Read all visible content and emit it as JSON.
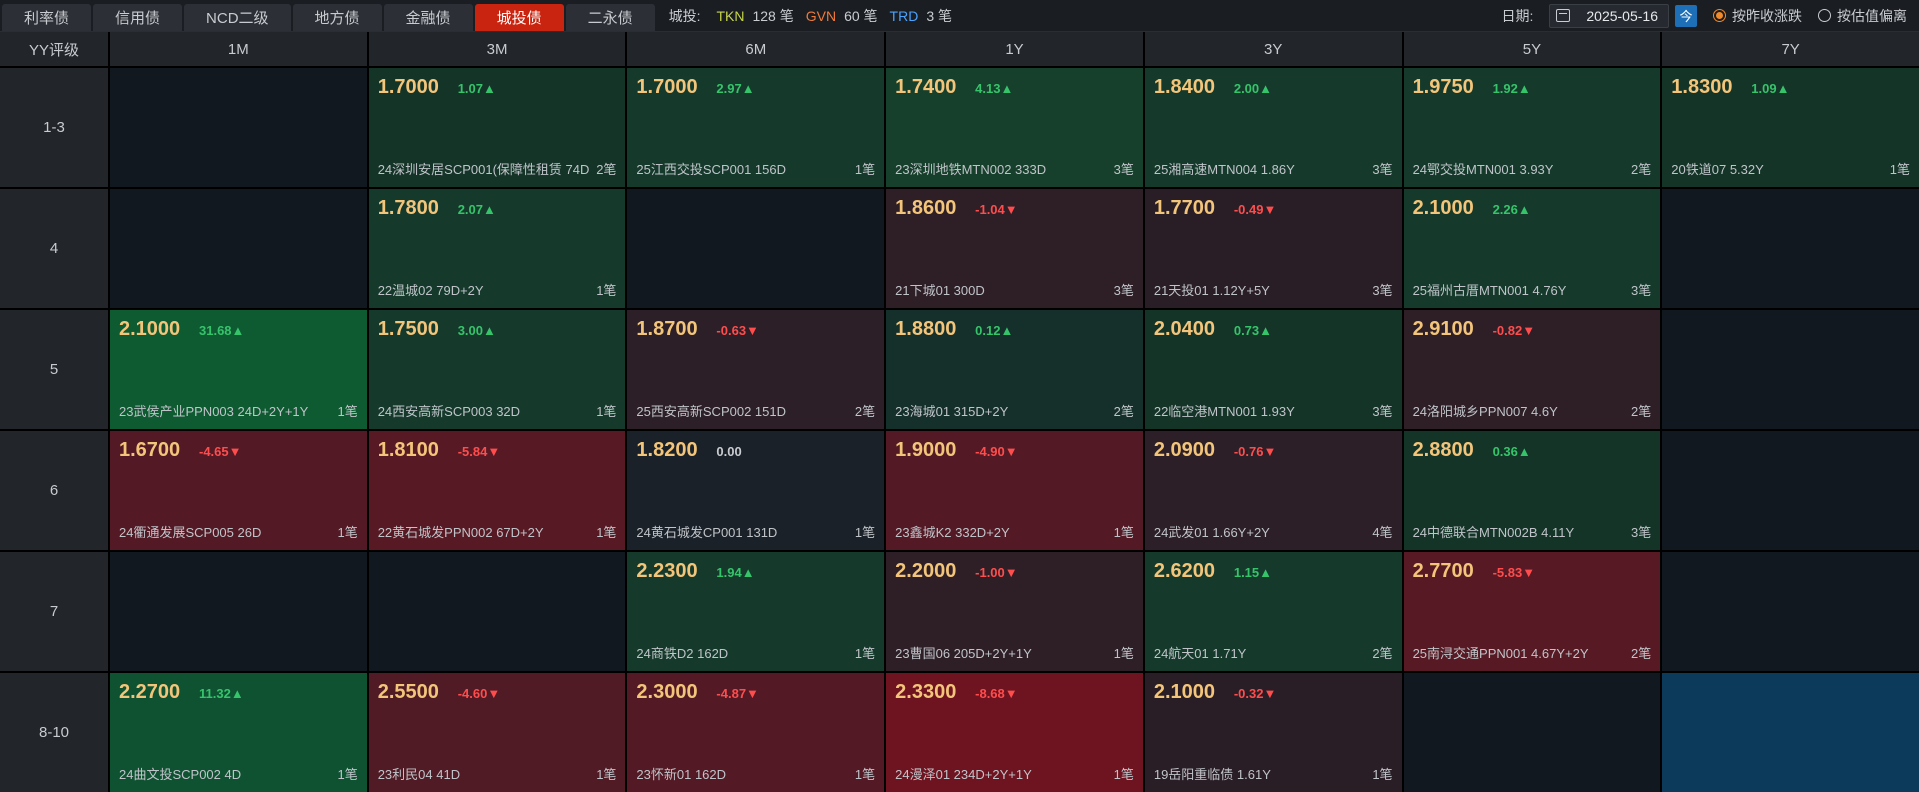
{
  "tabs": [
    {
      "label": "利率债",
      "active": false
    },
    {
      "label": "信用债",
      "active": false
    },
    {
      "label": "NCD二级",
      "active": false
    },
    {
      "label": "地方债",
      "active": false
    },
    {
      "label": "金融债",
      "active": false
    },
    {
      "label": "城投债",
      "active": true
    },
    {
      "label": "二永债",
      "active": false
    }
  ],
  "stats": {
    "label": "城投:",
    "items": [
      {
        "code": "TKN",
        "value": "128 笔",
        "color": "#c7d64a"
      },
      {
        "code": "GVN",
        "value": "60 笔",
        "color": "#f07a3a"
      },
      {
        "code": "TRD",
        "value": "3 笔",
        "color": "#4aa3ff"
      }
    ]
  },
  "date": {
    "label": "日期:",
    "value": "2025-05-16",
    "today": "今"
  },
  "radios": [
    {
      "label": "按昨收涨跌",
      "selected": true
    },
    {
      "label": "按估值偏离",
      "selected": false
    }
  ],
  "columns": [
    "YY评级",
    "1M",
    "3M",
    "6M",
    "1Y",
    "3Y",
    "5Y",
    "7Y"
  ],
  "rows": [
    {
      "rating": "1-3",
      "cells": [
        null,
        {
          "price": "1.7000",
          "change": "1.07▲",
          "dir": "up",
          "bond": "24深圳安居SCP001(保障性租赁 74D",
          "count": "2笔",
          "bg": "#153428"
        },
        {
          "price": "1.7000",
          "change": "2.97▲",
          "dir": "up",
          "bond": "25江西交投SCP001 156D",
          "count": "1笔",
          "bg": "#153a2b"
        },
        {
          "price": "1.7400",
          "change": "4.13▲",
          "dir": "up",
          "bond": "23深圳地铁MTN002 333D",
          "count": "3笔",
          "bg": "#17402c"
        },
        {
          "price": "1.8400",
          "change": "2.00▲",
          "dir": "up",
          "bond": "25湘高速MTN004 1.86Y",
          "count": "3笔",
          "bg": "#153a2b"
        },
        {
          "price": "1.9750",
          "change": "1.92▲",
          "dir": "up",
          "bond": "24鄂交投MTN001 3.93Y",
          "count": "2笔",
          "bg": "#153a2b"
        },
        {
          "price": "1.8300",
          "change": "1.09▲",
          "dir": "up",
          "bond": "20铁道07 5.32Y",
          "count": "1笔",
          "bg": "#153428"
        }
      ]
    },
    {
      "rating": "4",
      "cells": [
        null,
        {
          "price": "1.7800",
          "change": "2.07▲",
          "dir": "up",
          "bond": "22温城02 79D+2Y",
          "count": "1笔",
          "bg": "#153a2b"
        },
        null,
        {
          "price": "1.8600",
          "change": "-1.04▼",
          "dir": "dn",
          "bond": "21下城01 300D",
          "count": "3笔",
          "bg": "#2e1f27"
        },
        {
          "price": "1.7700",
          "change": "-0.49▼",
          "dir": "dn",
          "bond": "21天投01 1.12Y+5Y",
          "count": "3笔",
          "bg": "#2a1e26"
        },
        {
          "price": "2.1000",
          "change": "2.26▲",
          "dir": "up",
          "bond": "25福州古厝MTN001 4.76Y",
          "count": "3笔",
          "bg": "#153a2b"
        },
        null
      ]
    },
    {
      "rating": "5",
      "cells": [
        {
          "price": "2.1000",
          "change": "31.68▲",
          "dir": "up",
          "bond": "23武侯产业PPN003 24D+2Y+1Y",
          "count": "1笔",
          "bg": "#0e5a31"
        },
        {
          "price": "1.7500",
          "change": "3.00▲",
          "dir": "up",
          "bond": "24西安高新SCP003 32D",
          "count": "1笔",
          "bg": "#153a2b"
        },
        {
          "price": "1.8700",
          "change": "-0.63▼",
          "dir": "dn",
          "bond": "25西安高新SCP002 151D",
          "count": "2笔",
          "bg": "#2c1f27"
        },
        {
          "price": "1.8800",
          "change": "0.12▲",
          "dir": "up",
          "bond": "23海城01 315D+2Y",
          "count": "2笔",
          "bg": "#15302a"
        },
        {
          "price": "2.0400",
          "change": "0.73▲",
          "dir": "up",
          "bond": "22临空港MTN001 1.93Y",
          "count": "3笔",
          "bg": "#153428"
        },
        {
          "price": "2.9100",
          "change": "-0.82▼",
          "dir": "dn",
          "bond": "24洛阳城乡PPN007 4.6Y",
          "count": "2笔",
          "bg": "#2e1f27"
        },
        null
      ]
    },
    {
      "rating": "6",
      "cells": [
        {
          "price": "1.6700",
          "change": "-4.65▼",
          "dir": "dn",
          "bond": "24衢通发展SCP005 26D",
          "count": "1笔",
          "bg": "#531a25"
        },
        {
          "price": "1.8100",
          "change": "-5.84▼",
          "dir": "dn",
          "bond": "22黄石城发PPN002 67D+2Y",
          "count": "1笔",
          "bg": "#571a24"
        },
        {
          "price": "1.8200",
          "change": "0.00",
          "dir": "flat",
          "bond": "24黄石城发CP001 131D",
          "count": "1笔",
          "bg": "#1b2128"
        },
        {
          "price": "1.9000",
          "change": "-4.90▼",
          "dir": "dn",
          "bond": "23鑫城K2 332D+2Y",
          "count": "1笔",
          "bg": "#531a25"
        },
        {
          "price": "2.0900",
          "change": "-0.76▼",
          "dir": "dn",
          "bond": "24武发01 1.66Y+2Y",
          "count": "4笔",
          "bg": "#2c1f27"
        },
        {
          "price": "2.8800",
          "change": "0.36▲",
          "dir": "up",
          "bond": "24中德联合MTN002B 4.11Y",
          "count": "3笔",
          "bg": "#153428"
        },
        null
      ]
    },
    {
      "rating": "7",
      "cells": [
        null,
        null,
        {
          "price": "2.2300",
          "change": "1.94▲",
          "dir": "up",
          "bond": "24商铁D2 162D",
          "count": "1笔",
          "bg": "#153a2b"
        },
        {
          "price": "2.2000",
          "change": "-1.00▼",
          "dir": "dn",
          "bond": "23曹国06 205D+2Y+1Y",
          "count": "1笔",
          "bg": "#2e1f27"
        },
        {
          "price": "2.6200",
          "change": "1.15▲",
          "dir": "up",
          "bond": "24航天01 1.71Y",
          "count": "2笔",
          "bg": "#153a2b"
        },
        {
          "price": "2.7700",
          "change": "-5.83▼",
          "dir": "dn",
          "bond": "25南浔交通PPN001 4.67Y+2Y",
          "count": "2笔",
          "bg": "#571a24"
        },
        null
      ]
    },
    {
      "rating": "8-10",
      "cells": [
        {
          "price": "2.2700",
          "change": "11.32▲",
          "dir": "up",
          "bond": "24曲文投SCP002 4D",
          "count": "1笔",
          "bg": "#0f5232"
        },
        {
          "price": "2.5500",
          "change": "-4.60▼",
          "dir": "dn",
          "bond": "23利民04 41D",
          "count": "1笔",
          "bg": "#501b25"
        },
        {
          "price": "2.3000",
          "change": "-4.87▼",
          "dir": "dn",
          "bond": "23怀新01 162D",
          "count": "1笔",
          "bg": "#531a25"
        },
        {
          "price": "2.3300",
          "change": "-8.68▼",
          "dir": "dn",
          "bond": "24漫泽01 234D+2Y+1Y",
          "count": "1笔",
          "bg": "#6e1420"
        },
        {
          "price": "2.1000",
          "change": "-0.32▼",
          "dir": "dn",
          "bond": "19岳阳重临债 1.61Y",
          "count": "1笔",
          "bg": "#2a1e26"
        },
        null,
        {
          "empty_bg": "#0c3a5a"
        }
      ]
    }
  ]
}
